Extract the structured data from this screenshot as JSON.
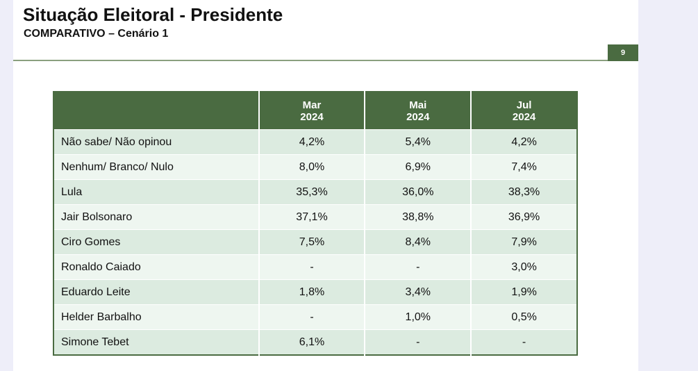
{
  "header": {
    "title": "Situação Eleitoral - Presidente",
    "subtitle": "COMPARATIVO – Cenário 1",
    "page_number": "9"
  },
  "colors": {
    "accent": "#4a6b41",
    "row_dark": "#dcebe0",
    "row_light": "#eef6f0",
    "background": "#eeeef9"
  },
  "table": {
    "columns": [
      {
        "month": "Mar",
        "year": "2024"
      },
      {
        "month": "Mai",
        "year": "2024"
      },
      {
        "month": "Jul",
        "year": "2024"
      }
    ],
    "rows": [
      {
        "label": "Não sabe/ Não opinou",
        "values": [
          "4,2%",
          "5,4%",
          "4,2%"
        ]
      },
      {
        "label": "Nenhum/ Branco/ Nulo",
        "values": [
          "8,0%",
          "6,9%",
          "7,4%"
        ]
      },
      {
        "label": "Lula",
        "values": [
          "35,3%",
          "36,0%",
          "38,3%"
        ]
      },
      {
        "label": "Jair Bolsonaro",
        "values": [
          "37,1%",
          "38,8%",
          "36,9%"
        ]
      },
      {
        "label": "Ciro Gomes",
        "values": [
          "7,5%",
          "8,4%",
          "7,9%"
        ]
      },
      {
        "label": "Ronaldo Caiado",
        "values": [
          "-",
          "-",
          "3,0%"
        ]
      },
      {
        "label": "Eduardo Leite",
        "values": [
          "1,8%",
          "3,4%",
          "1,9%"
        ]
      },
      {
        "label": "Helder Barbalho",
        "values": [
          "-",
          "1,0%",
          "0,5%"
        ]
      },
      {
        "label": "Simone Tebet",
        "values": [
          "6,1%",
          "-",
          "-"
        ]
      }
    ]
  }
}
